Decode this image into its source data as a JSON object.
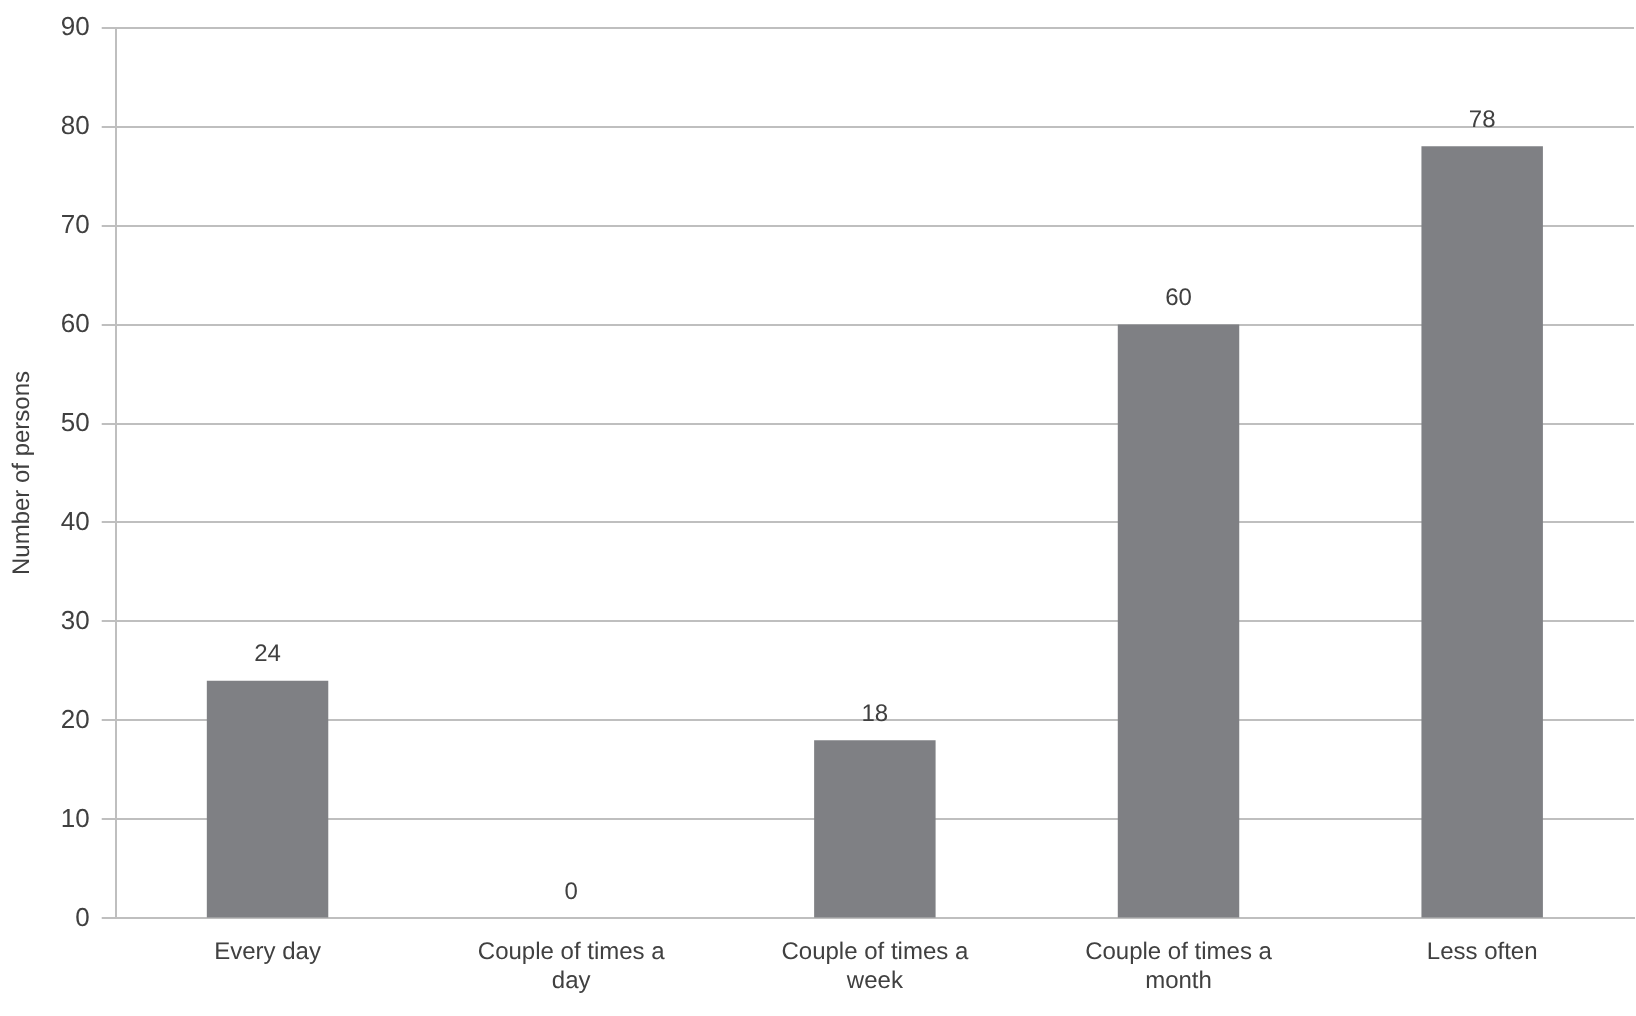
{
  "chart_data": {
    "type": "bar",
    "ylabel": "Number of persons",
    "categories": [
      "Every day",
      "Couple of times a day",
      "Couple of times a week",
      "Couple of times a month",
      "Less often"
    ],
    "values": [
      24,
      0,
      18,
      60,
      78
    ],
    "color": "#7f8084",
    "ylim": [
      0,
      90
    ],
    "yticks": [
      0,
      10,
      20,
      30,
      40,
      50,
      60,
      70,
      80,
      90
    ],
    "grid": "y",
    "data_labels": true
  }
}
